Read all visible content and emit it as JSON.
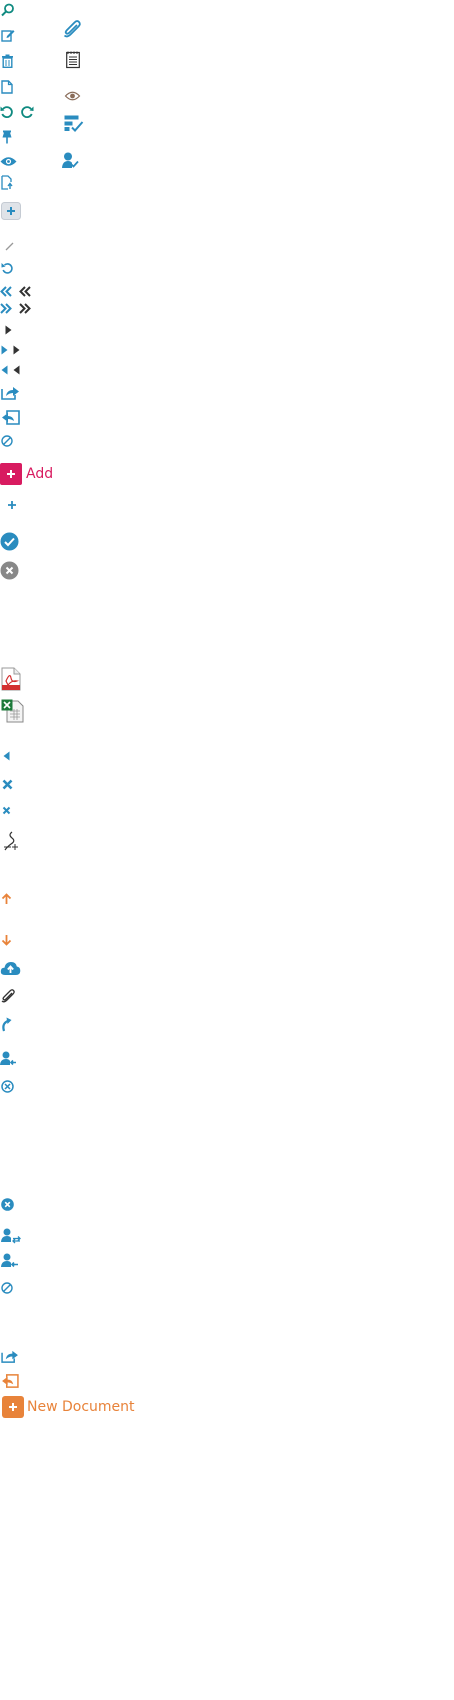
{
  "colors": {
    "primary": "#2a8cbf",
    "teal": "#0f8a80",
    "dark": "#333333",
    "magenta": "#d81b60",
    "orange": "#e8833a",
    "gray": "#888888",
    "pdf_red": "#d32f2f",
    "excel_green": "#1d7a3a"
  },
  "icons": [
    "search-icon",
    "edit-icon",
    "trash-icon",
    "document-icon",
    "undo-icon",
    "redo-icon",
    "pin-icon",
    "eye-icon",
    "file-export-icon",
    "plus-box-icon",
    "pencil-icon",
    "refresh-icon",
    "first-page-icon",
    "last-page-icon",
    "play-icon",
    "step-forward-icon",
    "step-back-icon",
    "share-icon",
    "reply-icon",
    "ban-icon",
    "plus-icon",
    "check-circle-icon",
    "close-circle-icon",
    "pdf-file-icon",
    "excel-file-icon",
    "caret-left-icon",
    "close-icon",
    "signature-icon",
    "arrow-up-icon",
    "arrow-down-icon",
    "cloud-upload-icon",
    "paperclip-icon",
    "redo-arrow-icon",
    "user-return-icon",
    "cancel-circle-icon",
    "user-assign-icon",
    "user-reassign-icon",
    "paperclip-large-icon",
    "notepad-icon",
    "view-icon",
    "task-checklist-icon",
    "user-approve-icon"
  ],
  "buttons": {
    "add_label": "Add",
    "new_document_label": "New Document"
  }
}
